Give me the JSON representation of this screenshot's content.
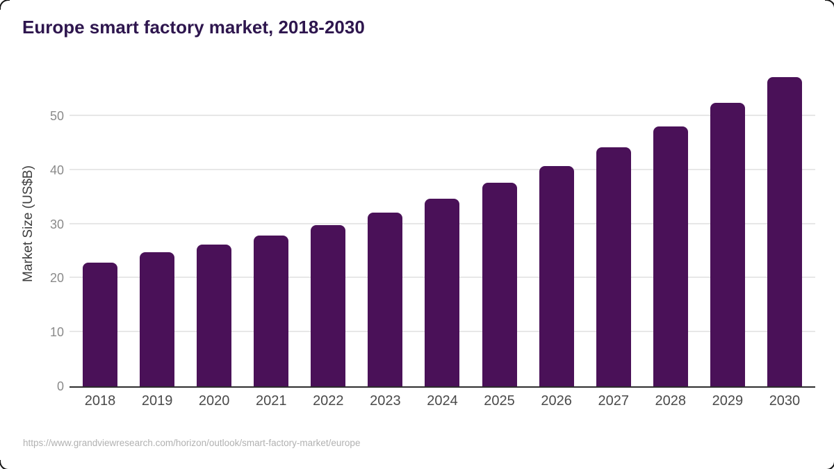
{
  "source_url": "https://www.grandviewresearch.com/horizon/outlook/smart-factory-market/europe",
  "chart_data": {
    "type": "bar",
    "title": "Europe smart factory market, 2018-2030",
    "categories": [
      "2018",
      "2019",
      "2020",
      "2021",
      "2022",
      "2023",
      "2024",
      "2025",
      "2026",
      "2027",
      "2028",
      "2029",
      "2030"
    ],
    "values": [
      22.9,
      24.8,
      26.2,
      27.9,
      29.8,
      32.1,
      34.7,
      37.6,
      40.7,
      44.2,
      48.1,
      52.4,
      57.2
    ],
    "xlabel": "",
    "ylabel": "Market Size (US$B)",
    "ylim": [
      0,
      60
    ],
    "yticks": [
      0,
      10,
      20,
      30,
      40,
      50
    ],
    "grid": "horizontal",
    "legend": "none"
  },
  "colors": {
    "background": "#ffffff",
    "bar": "#4a1158",
    "title": "#2e164e",
    "gridline": "#e7e7e7",
    "axis_line": "#2d2d2d",
    "x_tick_label": "#4a4a4a",
    "y_tick_label": "#8a8a8a",
    "y_axis_title": "#3d3d3d",
    "source_text": "#b1b1b1"
  }
}
